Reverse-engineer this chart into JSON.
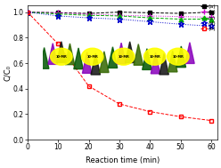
{
  "x": [
    0,
    10,
    20,
    30,
    40,
    50,
    60
  ],
  "series_a": [
    1.0,
    0.995,
    0.99,
    1.0,
    0.995,
    0.99,
    1.0
  ],
  "series_b": [
    1.0,
    0.995,
    0.985,
    0.975,
    0.97,
    0.965,
    0.96
  ],
  "series_c": [
    1.0,
    0.985,
    0.975,
    0.97,
    0.955,
    0.945,
    0.945
  ],
  "series_d": [
    1.0,
    0.97,
    0.955,
    0.945,
    0.925,
    0.905,
    0.89
  ],
  "series_e": [
    1.0,
    0.75,
    0.42,
    0.28,
    0.22,
    0.18,
    0.15
  ],
  "color_a": "#000000",
  "color_b": "#cc00cc",
  "color_c": "#00aa00",
  "color_d": "#0000cc",
  "color_e": "#ff0000",
  "xlabel": "Reaction time (min)",
  "ylabel": "C/C₀",
  "xlim": [
    0,
    62
  ],
  "ylim": [
    0.0,
    1.05
  ],
  "xticks": [
    0,
    10,
    20,
    30,
    40,
    50,
    60
  ],
  "yticks": [
    0.0,
    0.2,
    0.4,
    0.6,
    0.8,
    1.0
  ]
}
